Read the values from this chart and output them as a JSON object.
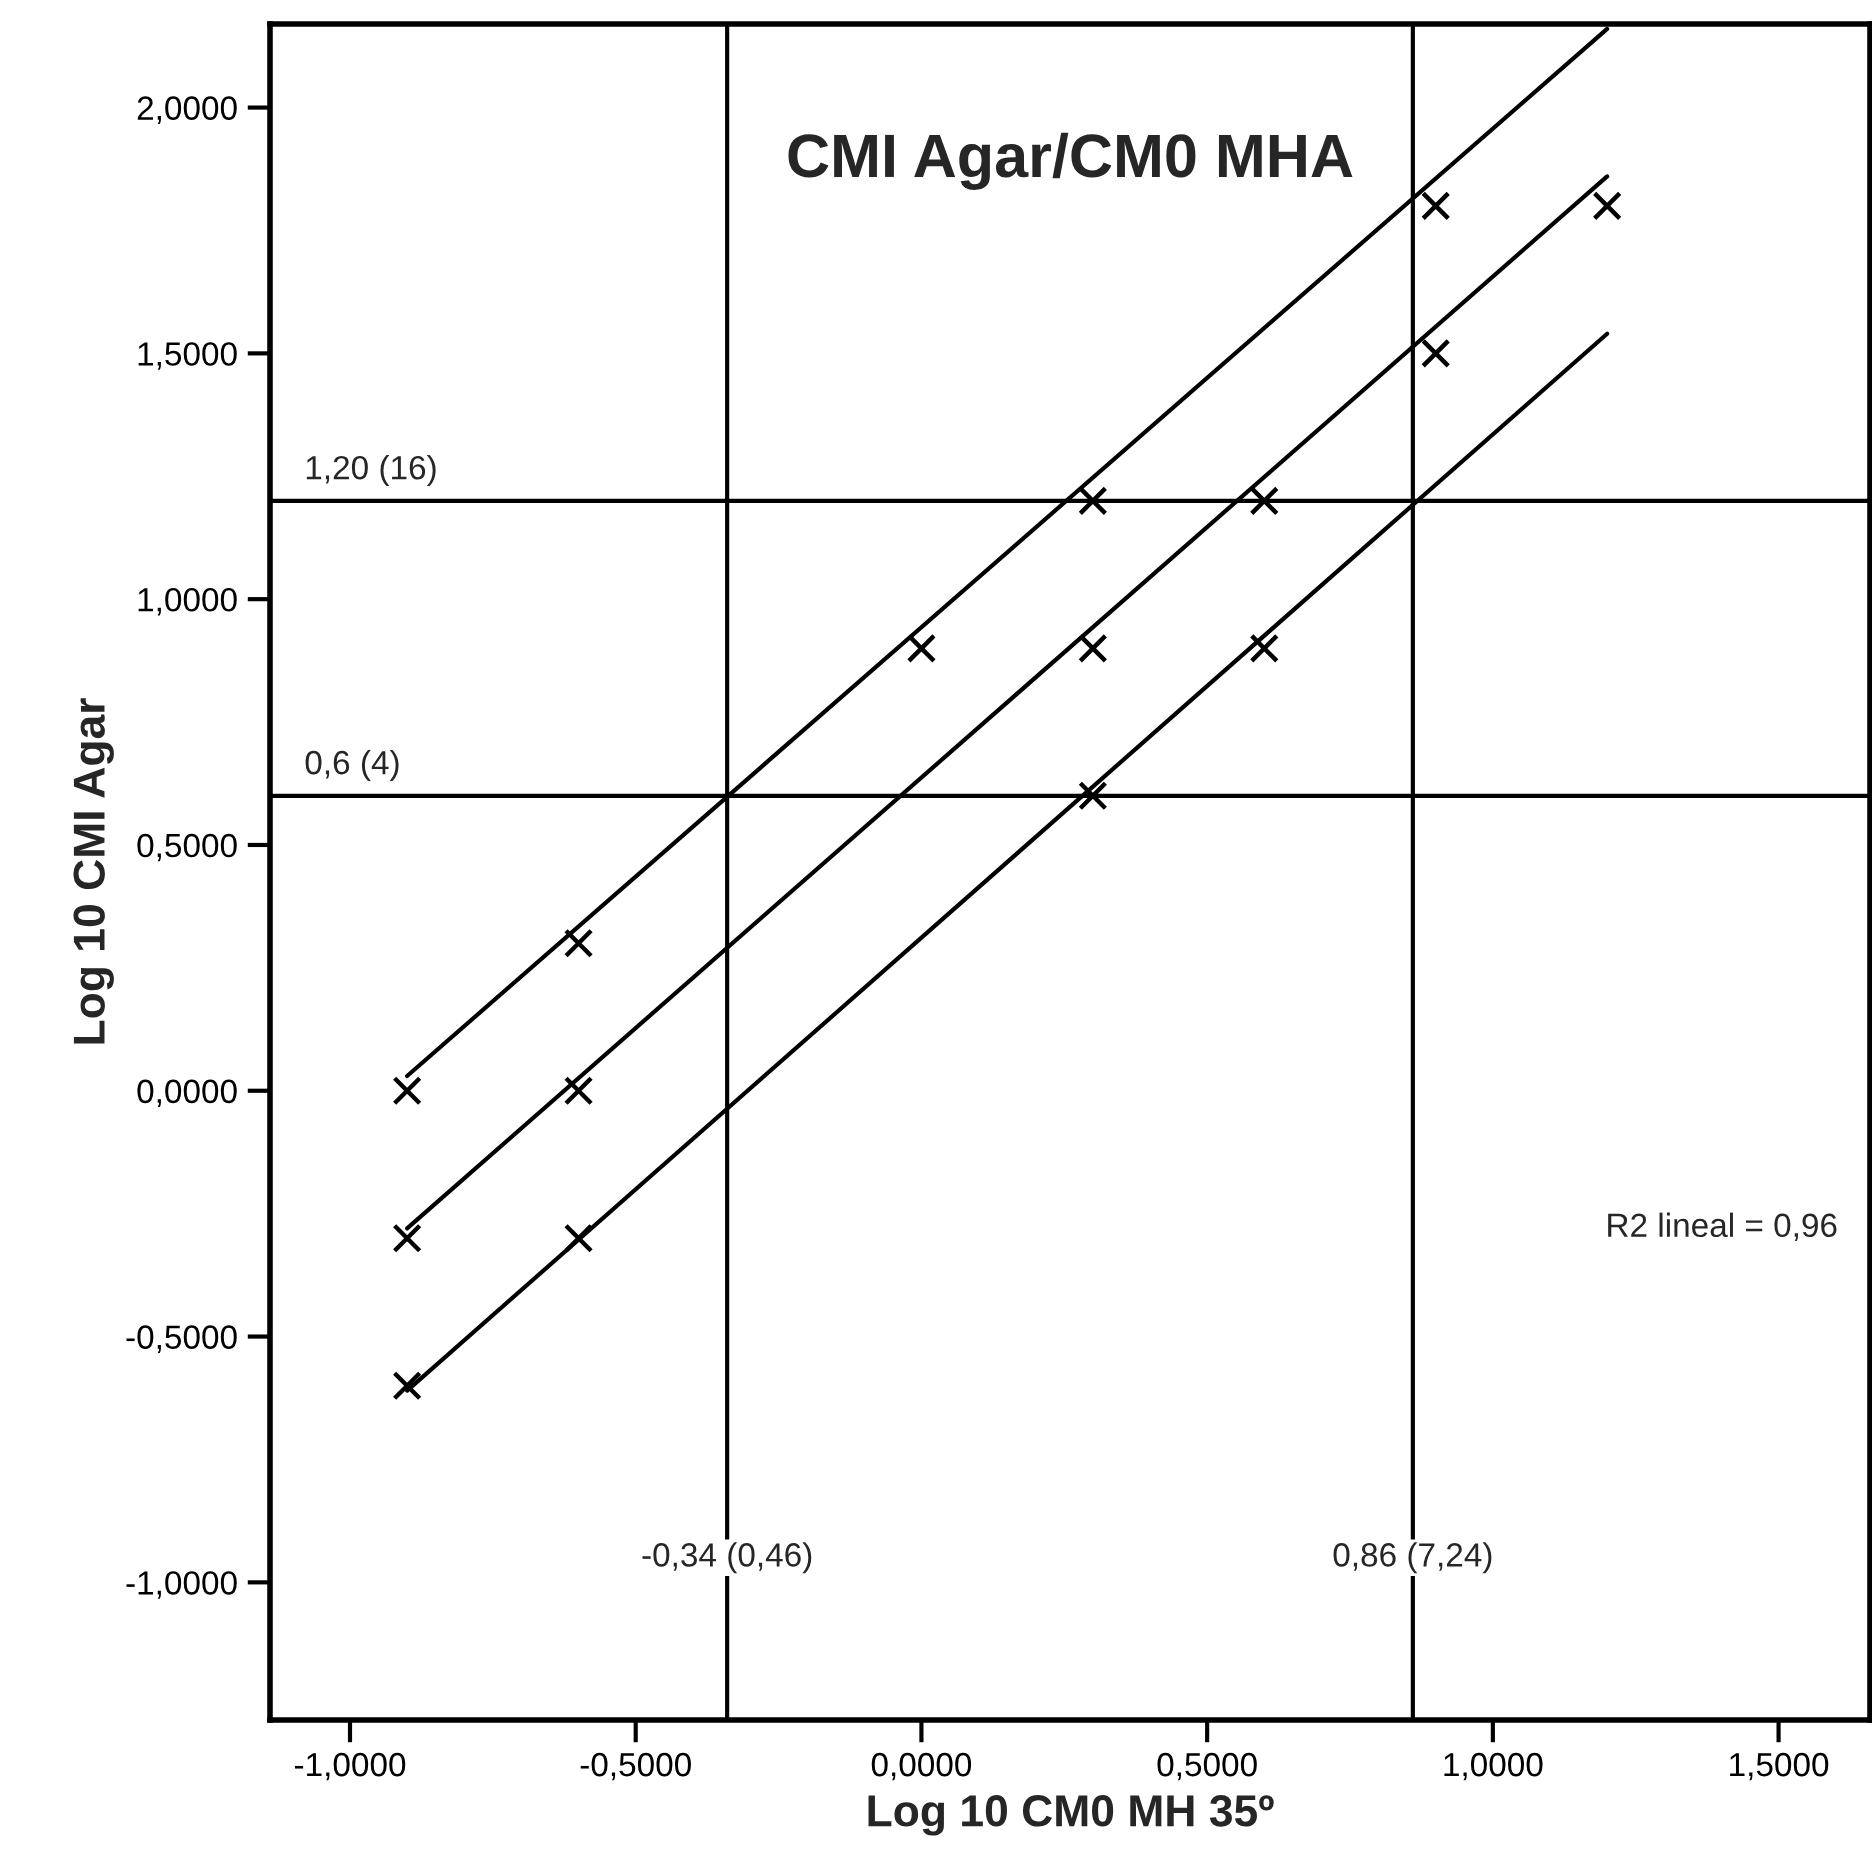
{
  "chart_data": {
    "type": "scatter",
    "title": "CMI Agar/CM0 MHA",
    "xlabel": "Log 10 CM0 MH 35º",
    "ylabel": "Log 10 CMI Agar",
    "xlim": [
      -1.14,
      1.66
    ],
    "ylim": [
      -1.28,
      2.17
    ],
    "xticks": [
      {
        "value": -1,
        "label": "-1,0000"
      },
      {
        "value": -0.5,
        "label": "-0,5000"
      },
      {
        "value": 0,
        "label": "0,0000"
      },
      {
        "value": 0.5,
        "label": "0,5000"
      },
      {
        "value": 1,
        "label": "1,0000"
      },
      {
        "value": 1.5,
        "label": "1,5000"
      }
    ],
    "yticks": [
      {
        "value": -1,
        "label": "-1,0000"
      },
      {
        "value": -0.5,
        "label": "-0,5000"
      },
      {
        "value": 0,
        "label": "0,0000"
      },
      {
        "value": 0.5,
        "label": "0,5000"
      },
      {
        "value": 1,
        "label": "1,0000"
      },
      {
        "value": 1.5,
        "label": "1,5000"
      },
      {
        "value": 2,
        "label": "2,0000"
      }
    ],
    "grid": false,
    "legend": false,
    "series": [
      {
        "type": "scatter",
        "marker": "cross",
        "color": "#000000",
        "x": [
          -0.9,
          -0.9,
          -0.9,
          -0.6,
          -0.6,
          -0.6,
          0,
          0.3,
          0.3,
          0.3,
          0.6,
          0.6,
          0.9,
          0.9,
          1.2
        ],
        "values": [
          0,
          -0.3,
          -0.6,
          0.3,
          0,
          -0.3,
          0.9,
          1.2,
          0.9,
          0.6,
          1.2,
          0.9,
          1.8,
          1.5,
          1.8
        ]
      },
      {
        "type": "line",
        "color": "#000000",
        "x": [
          -0.9,
          1.2
        ],
        "values": [
          0.03,
          2.16
        ]
      },
      {
        "type": "line",
        "color": "#000000",
        "x": [
          -0.9,
          1.2
        ],
        "values": [
          -0.28,
          1.86
        ]
      },
      {
        "type": "line",
        "color": "#000000",
        "x": [
          -0.9,
          1.2
        ],
        "values": [
          -0.61,
          1.54
        ]
      }
    ],
    "ref_lines": [
      {
        "axis": "x",
        "value": -0.34,
        "label": "-0,34 (0,46)",
        "color": "#000000"
      },
      {
        "axis": "x",
        "value": 0.86,
        "label": "0,86 (7,24)",
        "color": "#000000"
      },
      {
        "axis": "y",
        "value": 1.2,
        "label": "1,20 (16)",
        "color": "#000000"
      },
      {
        "axis": "y",
        "value": 0.6,
        "label": "0,6 (4)",
        "color": "#000000"
      }
    ],
    "annotations": [
      "R2 lineal = 0,96"
    ]
  }
}
